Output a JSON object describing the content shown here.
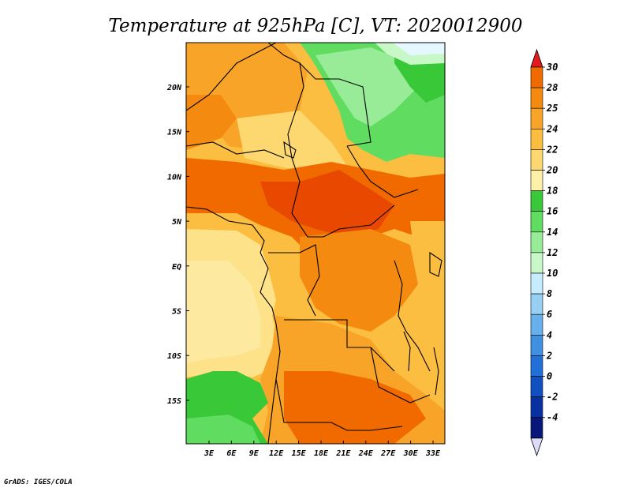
{
  "title": "Temperature at 925hPa [C], VT: 2020012900",
  "credit": "GrADS: IGES/COLA",
  "map": {
    "lat_labels": [
      "20N",
      "15N",
      "10N",
      "5N",
      "EQ",
      "5S",
      "10S",
      "15S"
    ],
    "lon_labels": [
      "3E",
      "6E",
      "9E",
      "12E",
      "15E",
      "18E",
      "21E",
      "24E",
      "27E",
      "30E",
      "33E"
    ]
  },
  "colorbar": {
    "labels": [
      "30",
      "28",
      "25",
      "24",
      "22",
      "20",
      "18",
      "16",
      "14",
      "12",
      "10",
      "8",
      "6",
      "4",
      "2",
      "0",
      "-2",
      "-4"
    ],
    "colors": [
      "#f06a00",
      "#f48b10",
      "#f8a428",
      "#fbbe40",
      "#fdd870",
      "#fef0a8",
      "#38c838",
      "#60dc60",
      "#98ec98",
      "#c8f8c8",
      "#c8ecff",
      "#98d0f4",
      "#68b0ec",
      "#4090e0",
      "#2070d8",
      "#1050c0",
      "#0830a0",
      "#081878"
    ],
    "top_color": "#e41a1c",
    "bottom_color": "#dcdcf8"
  }
}
